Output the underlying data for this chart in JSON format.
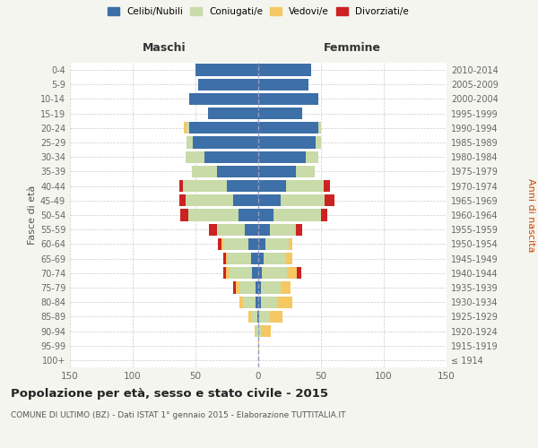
{
  "age_groups": [
    "100+",
    "95-99",
    "90-94",
    "85-89",
    "80-84",
    "75-79",
    "70-74",
    "65-69",
    "60-64",
    "55-59",
    "50-54",
    "45-49",
    "40-44",
    "35-39",
    "30-34",
    "25-29",
    "20-24",
    "15-19",
    "10-14",
    "5-9",
    "0-4"
  ],
  "birth_years": [
    "≤ 1914",
    "1915-1919",
    "1920-1924",
    "1925-1929",
    "1930-1934",
    "1935-1939",
    "1940-1944",
    "1945-1949",
    "1950-1954",
    "1955-1959",
    "1960-1964",
    "1965-1969",
    "1970-1974",
    "1975-1979",
    "1980-1984",
    "1985-1989",
    "1990-1994",
    "1995-1999",
    "2000-2004",
    "2005-2009",
    "2010-2014"
  ],
  "male": {
    "celibi": [
      0,
      0,
      0,
      1,
      2,
      2,
      5,
      6,
      8,
      11,
      16,
      20,
      25,
      33,
      43,
      52,
      55,
      40,
      55,
      48,
      50
    ],
    "coniugati": [
      0,
      0,
      2,
      5,
      10,
      13,
      18,
      18,
      20,
      22,
      40,
      38,
      35,
      20,
      15,
      5,
      2,
      0,
      0,
      0,
      0
    ],
    "vedovi": [
      0,
      0,
      1,
      2,
      3,
      3,
      3,
      2,
      1,
      0,
      0,
      0,
      0,
      0,
      0,
      0,
      2,
      0,
      0,
      0,
      0
    ],
    "divorziati": [
      0,
      0,
      0,
      0,
      0,
      2,
      2,
      2,
      3,
      6,
      6,
      5,
      3,
      0,
      0,
      0,
      0,
      0,
      0,
      0,
      0
    ]
  },
  "female": {
    "nubili": [
      0,
      0,
      0,
      1,
      2,
      2,
      3,
      4,
      6,
      9,
      12,
      18,
      22,
      30,
      38,
      46,
      48,
      35,
      48,
      40,
      42
    ],
    "coniugate": [
      0,
      0,
      2,
      8,
      13,
      16,
      20,
      18,
      18,
      20,
      38,
      35,
      30,
      15,
      10,
      4,
      2,
      0,
      0,
      0,
      0
    ],
    "vedove": [
      0,
      1,
      8,
      10,
      12,
      8,
      8,
      5,
      3,
      1,
      0,
      0,
      0,
      0,
      0,
      0,
      0,
      0,
      0,
      0,
      0
    ],
    "divorziate": [
      0,
      0,
      0,
      0,
      0,
      0,
      3,
      0,
      0,
      5,
      5,
      8,
      5,
      0,
      0,
      0,
      0,
      0,
      0,
      0,
      0
    ]
  },
  "colors": {
    "celibi_nubili": "#3d6fa8",
    "coniugati": "#c8dba8",
    "vedovi": "#f5c864",
    "divorziati": "#cc2222"
  },
  "xlim": 150,
  "title": "Popolazione per età, sesso e stato civile - 2015",
  "subtitle": "COMUNE DI ULTIMO (BZ) - Dati ISTAT 1° gennaio 2015 - Elaborazione TUTTITALIA.IT",
  "ylabel_left": "Fasce di età",
  "ylabel_right": "Anni di nascita",
  "xlabel_male": "Maschi",
  "xlabel_female": "Femmine",
  "legend_labels": [
    "Celibi/Nubili",
    "Coniugati/e",
    "Vedovi/e",
    "Divorziati/e"
  ],
  "bg_color": "#f5f5f0",
  "plot_bg": "#ffffff"
}
